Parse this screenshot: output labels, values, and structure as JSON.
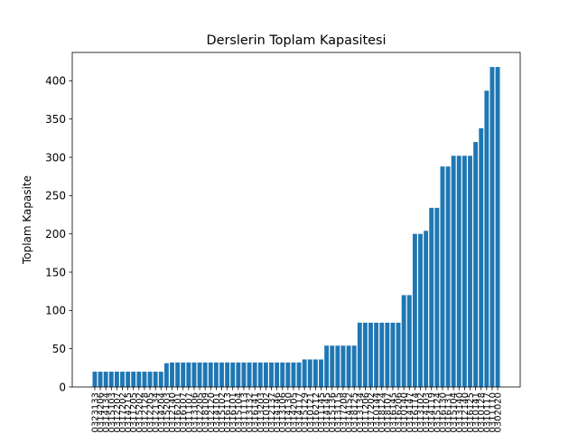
{
  "chart_data": {
    "type": "bar",
    "title": "Derslerin Toplam Kapasitesi",
    "xlabel": "",
    "ylabel": "Toplam Kapasite",
    "ylim": [
      0,
      437
    ],
    "yticks": [
      0,
      50,
      100,
      150,
      200,
      250,
      300,
      350,
      400
    ],
    "bar_color": "#1f77b4",
    "grid": false,
    "categories": [
      "0323133",
      "0314206",
      "0314134",
      "0315103",
      "0312207",
      "0317202",
      "0314215",
      "0311205",
      "0315202",
      "0312128",
      "0312205",
      "0312134",
      "0314204",
      "0315203",
      "0312140",
      "0316201",
      "0316107",
      "0311107",
      "0313106",
      "0312205",
      "0318109",
      "0312120",
      "0314101",
      "0315102",
      "0316113",
      "0316101",
      "0315104",
      "0311113",
      "0313132",
      "0316141",
      "0313203",
      "0310102",
      "0312137",
      "0314146",
      "0313106",
      "0314130",
      "0314205",
      "0314117",
      "0315129",
      "0310121",
      "0316212",
      "0311145",
      "0314145",
      "0315136",
      "0313115",
      "0317208",
      "0314152",
      "0318125",
      "0313134",
      "0311206",
      "0317202",
      "0310144",
      "0318124",
      "0318107",
      "0316145",
      "0316206",
      "0310140",
      "0314147",
      "0316114",
      "0313102",
      "0314103",
      "0314119",
      "0315124",
      "0316130",
      "0316131",
      "0315104",
      "0313140",
      "0312140",
      "0316125",
      "0310141",
      "0310128",
      "0310117",
      "0311110",
      "0302020"
    ],
    "values": [
      20,
      20,
      20,
      20,
      20,
      20,
      20,
      20,
      20,
      20,
      20,
      20,
      20,
      31,
      32,
      32,
      32,
      32,
      32,
      32,
      32,
      32,
      32,
      32,
      32,
      32,
      32,
      32,
      32,
      32,
      32,
      32,
      32,
      32,
      32,
      32,
      32,
      32,
      36,
      36,
      36,
      36,
      54,
      54,
      54,
      54,
      54,
      54,
      84,
      84,
      84,
      84,
      84,
      84,
      84,
      84,
      120,
      120,
      200,
      200,
      204,
      234,
      234,
      288,
      288,
      302,
      302,
      302,
      302,
      320,
      338,
      387,
      418,
      418
    ]
  }
}
